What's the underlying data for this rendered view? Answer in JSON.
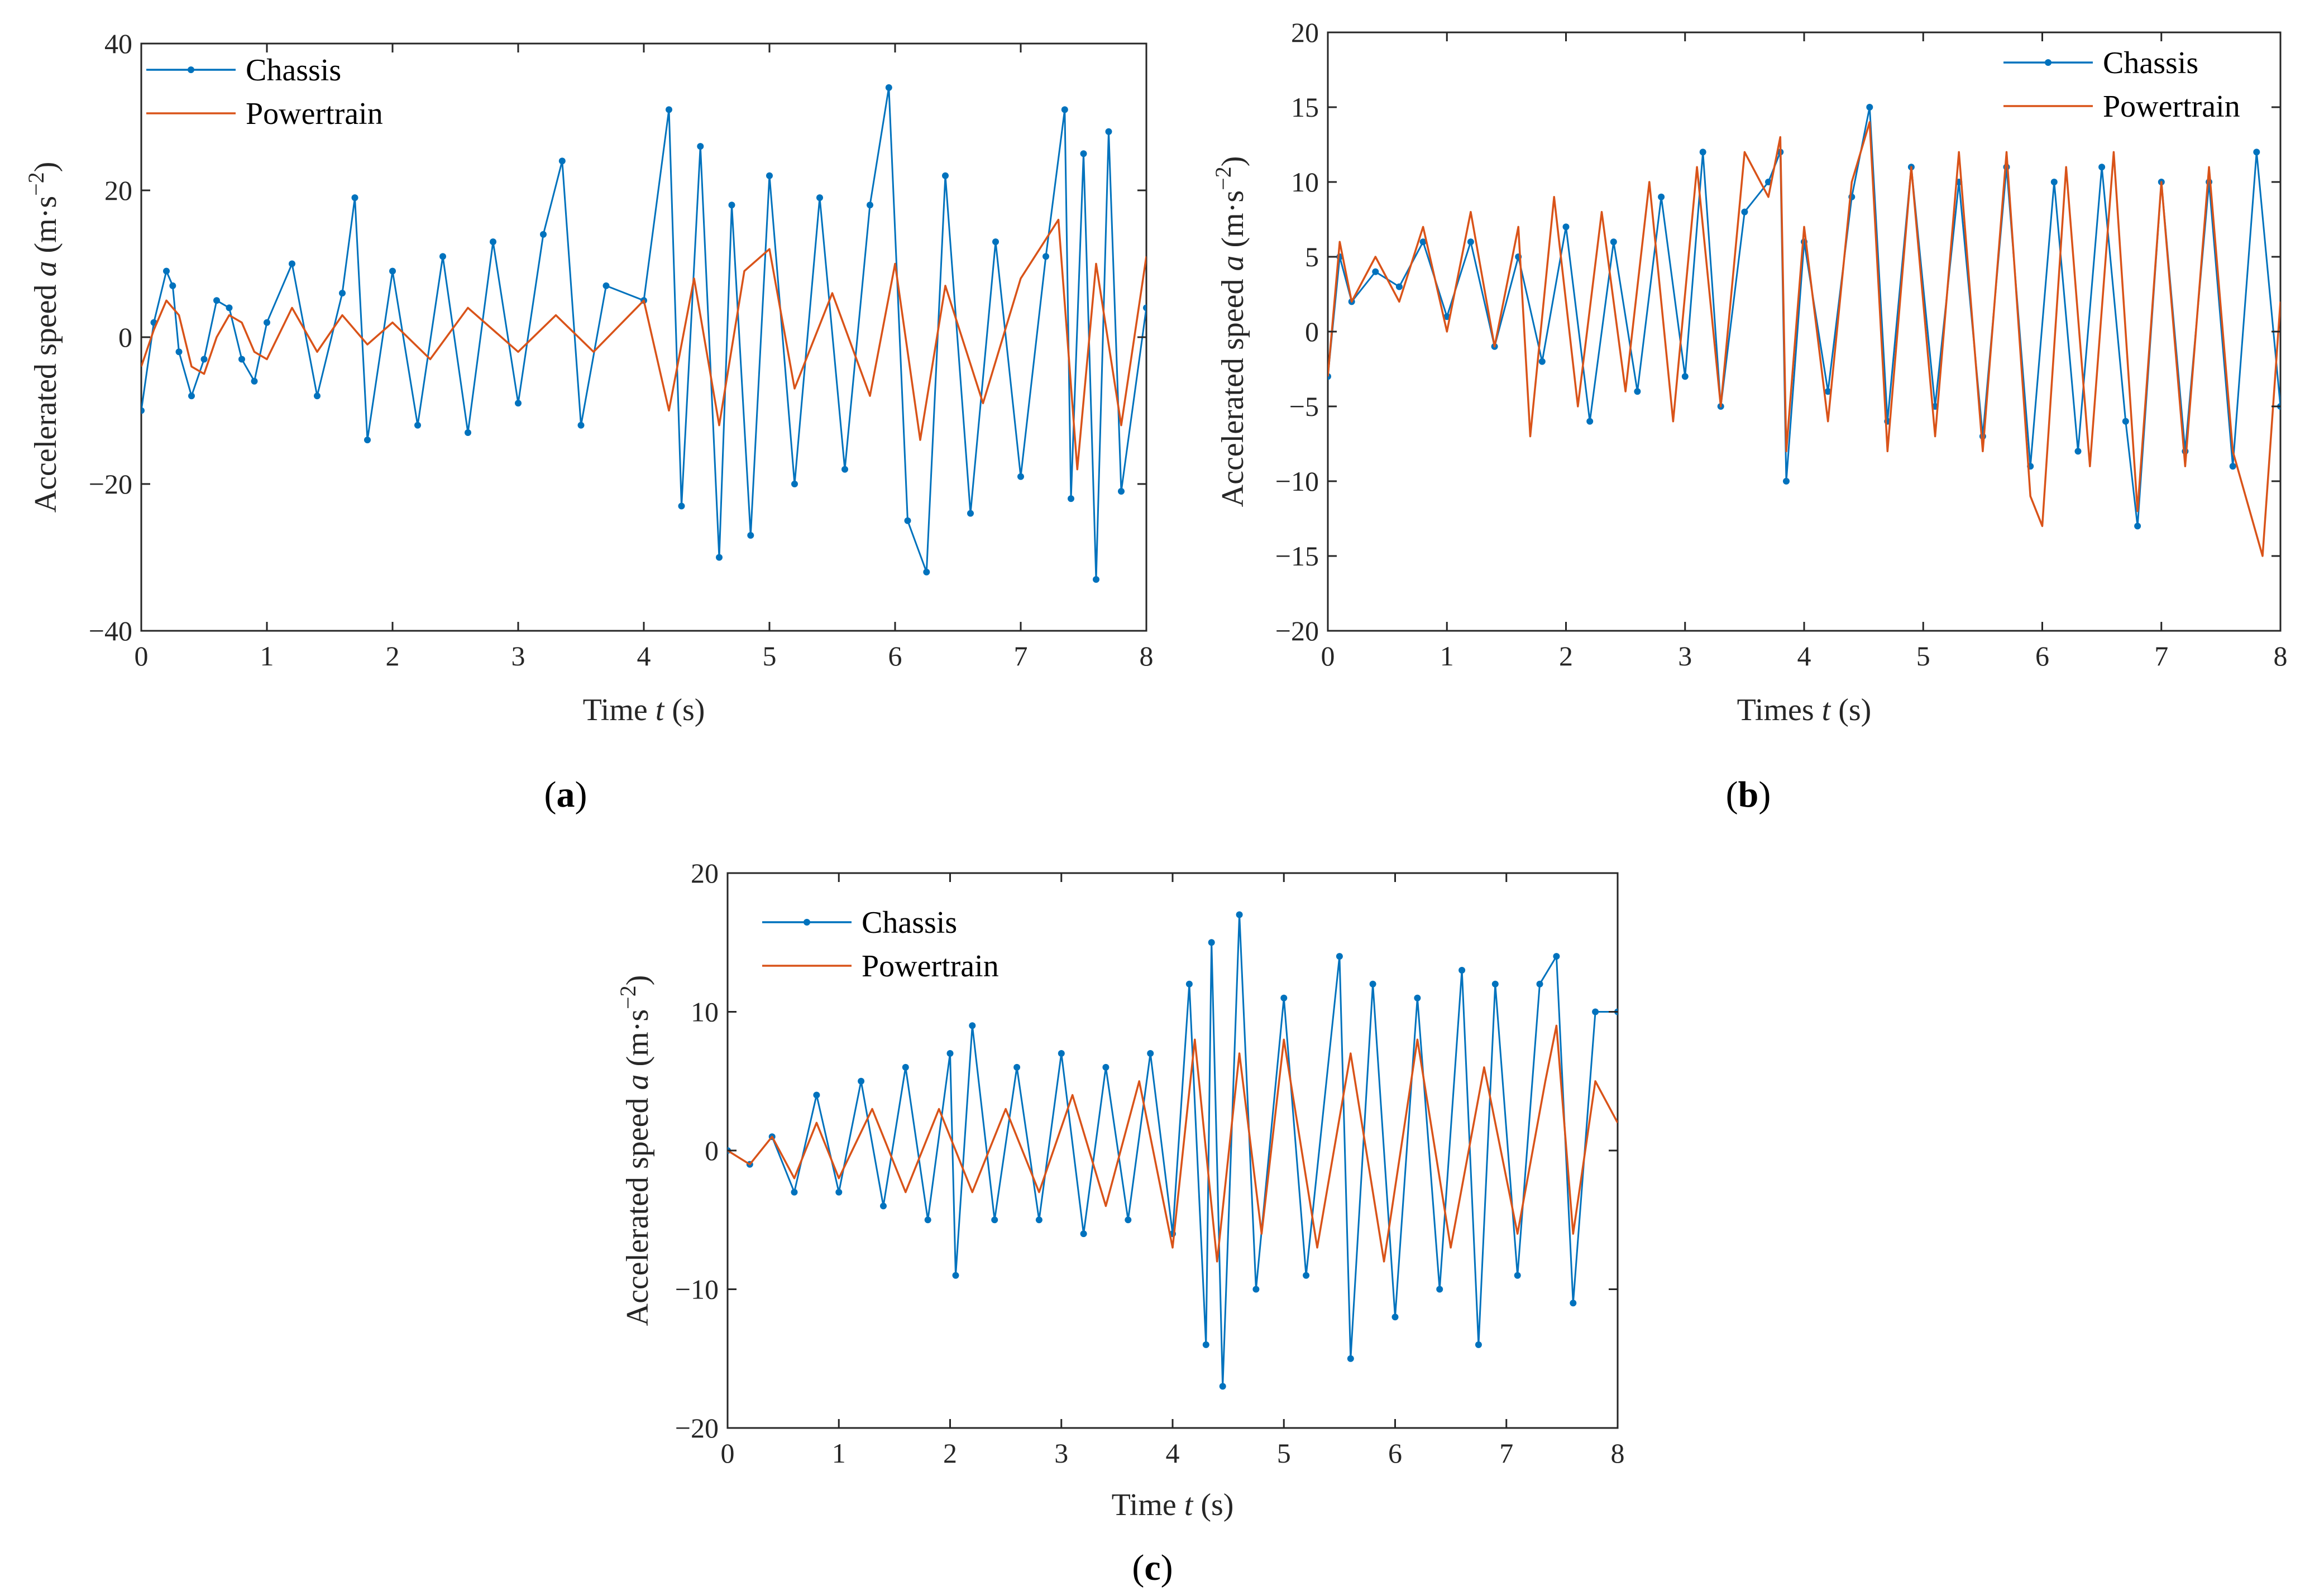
{
  "figure": {
    "panels": [
      "a",
      "b",
      "c"
    ]
  },
  "colors": {
    "chassis": "#0072BD",
    "powertrain": "#D95319",
    "axis": "#262626"
  },
  "chart_data": [
    {
      "id": "a",
      "type": "line",
      "panel_label": {
        "open": "(",
        "letter": "a",
        "close": ")"
      },
      "xlabel": {
        "pre": "Time ",
        "var": "t",
        "post": " (s)"
      },
      "ylabel": {
        "pre": "Accelerated speed ",
        "var": "a",
        "unit_open": " (m·s",
        "exp": "−2",
        "unit_close": ")"
      },
      "xlim": [
        0,
        8
      ],
      "ylim": [
        -40,
        40
      ],
      "xticks": [
        0,
        1,
        2,
        3,
        4,
        5,
        6,
        7,
        8
      ],
      "yticks": [
        -40,
        -20,
        0,
        20,
        40
      ],
      "ytick_labels": [
        "−40",
        "−20",
        "0",
        "20",
        "40"
      ],
      "legend": {
        "position": "top-left",
        "entries": [
          "Chassis",
          "Powertrain"
        ]
      },
      "series": [
        {
          "name": "Chassis",
          "marker": "dot",
          "style": "line-with-dots",
          "x": [
            0,
            0.1,
            0.2,
            0.25,
            0.3,
            0.4,
            0.5,
            0.6,
            0.7,
            0.8,
            0.9,
            1.0,
            1.2,
            1.4,
            1.6,
            1.7,
            1.8,
            2.0,
            2.2,
            2.4,
            2.6,
            2.8,
            3.0,
            3.2,
            3.35,
            3.5,
            3.7,
            4.0,
            4.2,
            4.3,
            4.45,
            4.6,
            4.7,
            4.85,
            5.0,
            5.2,
            5.4,
            5.6,
            5.8,
            5.95,
            6.1,
            6.25,
            6.4,
            6.6,
            6.8,
            7.0,
            7.2,
            7.35,
            7.4,
            7.5,
            7.6,
            7.7,
            7.8,
            8.0
          ],
          "y": [
            -10,
            2,
            9,
            7,
            -2,
            -8,
            -3,
            5,
            4,
            -3,
            -6,
            2,
            10,
            -8,
            6,
            19,
            -14,
            9,
            -12,
            11,
            -13,
            13,
            -9,
            14,
            24,
            -12,
            7,
            5,
            31,
            -23,
            26,
            -30,
            18,
            -27,
            22,
            -20,
            19,
            -18,
            18,
            34,
            -25,
            -32,
            22,
            -24,
            13,
            -19,
            11,
            31,
            -22,
            25,
            -33,
            28,
            -21,
            4
          ]
        },
        {
          "name": "Powertrain",
          "marker": "none",
          "style": "line",
          "x": [
            0,
            0.1,
            0.2,
            0.3,
            0.4,
            0.5,
            0.6,
            0.7,
            0.8,
            0.9,
            1.0,
            1.2,
            1.4,
            1.6,
            1.8,
            2.0,
            2.3,
            2.6,
            3.0,
            3.3,
            3.6,
            4.0,
            4.2,
            4.4,
            4.6,
            4.8,
            5.0,
            5.2,
            5.5,
            5.8,
            6.0,
            6.2,
            6.4,
            6.7,
            7.0,
            7.3,
            7.45,
            7.6,
            7.8,
            8.0
          ],
          "y": [
            -4,
            1,
            5,
            3,
            -4,
            -5,
            0,
            3,
            2,
            -2,
            -3,
            4,
            -2,
            3,
            -1,
            2,
            -3,
            4,
            -2,
            3,
            -2,
            5,
            -10,
            8,
            -12,
            9,
            12,
            -7,
            6,
            -8,
            10,
            -14,
            7,
            -9,
            8,
            16,
            -18,
            10,
            -12,
            11
          ]
        }
      ]
    },
    {
      "id": "b",
      "type": "line",
      "panel_label": {
        "open": "(",
        "letter": "b",
        "close": ")"
      },
      "xlabel": {
        "pre": "Times ",
        "var": "t",
        "post": " (s)"
      },
      "ylabel": {
        "pre": "Accelerated speed ",
        "var": "a",
        "unit_open": " (m·s",
        "exp": "−2",
        "unit_close": ")"
      },
      "xlim": [
        0,
        8
      ],
      "ylim": [
        -20,
        20
      ],
      "xticks": [
        0,
        1,
        2,
        3,
        4,
        5,
        6,
        7,
        8
      ],
      "yticks": [
        -20,
        -15,
        -10,
        -5,
        0,
        5,
        10,
        15,
        20
      ],
      "ytick_labels": [
        "−20",
        "−15",
        "−10",
        "−5",
        "0",
        "5",
        "10",
        "15",
        "20"
      ],
      "legend": {
        "position": "top-right",
        "entries": [
          "Chassis",
          "Powertrain"
        ]
      },
      "series": [
        {
          "name": "Chassis",
          "marker": "dot",
          "style": "line-with-dots",
          "x": [
            0,
            0.1,
            0.2,
            0.4,
            0.6,
            0.8,
            1.0,
            1.2,
            1.4,
            1.6,
            1.8,
            2.0,
            2.2,
            2.4,
            2.6,
            2.8,
            3.0,
            3.15,
            3.3,
            3.5,
            3.7,
            3.8,
            3.85,
            4.0,
            4.2,
            4.4,
            4.55,
            4.7,
            4.9,
            5.1,
            5.3,
            5.5,
            5.7,
            5.9,
            6.1,
            6.3,
            6.5,
            6.7,
            6.8,
            7.0,
            7.2,
            7.4,
            7.6,
            7.8,
            8.0
          ],
          "y": [
            -3,
            5,
            2,
            4,
            3,
            6,
            1,
            6,
            -1,
            5,
            -2,
            7,
            -6,
            6,
            -4,
            9,
            -3,
            12,
            -5,
            8,
            10,
            12,
            -10,
            6,
            -4,
            9,
            15,
            -6,
            11,
            -5,
            10,
            -7,
            11,
            -9,
            10,
            -8,
            11,
            -6,
            -13,
            10,
            -8,
            10,
            -9,
            12,
            -5
          ]
        },
        {
          "name": "Powertrain",
          "marker": "none",
          "style": "line",
          "x": [
            0,
            0.1,
            0.2,
            0.4,
            0.6,
            0.8,
            1.0,
            1.2,
            1.4,
            1.6,
            1.7,
            1.9,
            2.1,
            2.3,
            2.5,
            2.7,
            2.9,
            3.1,
            3.3,
            3.5,
            3.7,
            3.8,
            3.85,
            4.0,
            4.2,
            4.4,
            4.55,
            4.7,
            4.9,
            5.1,
            5.3,
            5.5,
            5.7,
            5.9,
            6.0,
            6.2,
            6.4,
            6.6,
            6.8,
            7.0,
            7.2,
            7.4,
            7.6,
            7.85,
            8.0
          ],
          "y": [
            -3,
            6,
            2,
            5,
            2,
            7,
            0,
            8,
            -1,
            7,
            -7,
            9,
            -5,
            8,
            -4,
            10,
            -6,
            11,
            -5,
            12,
            9,
            13,
            -8,
            7,
            -6,
            10,
            14,
            -8,
            11,
            -7,
            12,
            -8,
            12,
            -11,
            -13,
            11,
            -9,
            12,
            -12,
            10,
            -9,
            11,
            -8,
            -15,
            2
          ]
        }
      ]
    },
    {
      "id": "c",
      "type": "line",
      "panel_label": {
        "open": "(",
        "letter": "c",
        "close": ")"
      },
      "xlabel": {
        "pre": "Time ",
        "var": "t",
        "post": " (s)"
      },
      "ylabel": {
        "pre": "Accelerated speed ",
        "var": "a",
        "unit_open": " (m·s",
        "exp": "−2",
        "unit_close": ")"
      },
      "xlim": [
        0,
        8
      ],
      "ylim": [
        -20,
        20
      ],
      "xticks": [
        0,
        1,
        2,
        3,
        4,
        5,
        6,
        7,
        8
      ],
      "yticks": [
        -20,
        -10,
        0,
        10,
        20
      ],
      "ytick_labels": [
        "−20",
        "−10",
        "0",
        "10",
        "20"
      ],
      "legend": {
        "position": "top-left",
        "entries": [
          "Chassis",
          "Powertrain"
        ]
      },
      "series": [
        {
          "name": "Chassis",
          "marker": "dot",
          "style": "line-with-dots",
          "x": [
            0,
            0.2,
            0.4,
            0.6,
            0.8,
            1.0,
            1.2,
            1.4,
            1.6,
            1.8,
            2.0,
            2.05,
            2.2,
            2.4,
            2.6,
            2.8,
            3.0,
            3.2,
            3.4,
            3.6,
            3.8,
            4.0,
            4.15,
            4.3,
            4.35,
            4.45,
            4.6,
            4.75,
            5.0,
            5.2,
            5.5,
            5.6,
            5.8,
            6.0,
            6.2,
            6.4,
            6.6,
            6.75,
            6.9,
            7.1,
            7.3,
            7.45,
            7.6,
            7.8,
            8.0
          ],
          "y": [
            0,
            -1,
            1,
            -3,
            4,
            -3,
            5,
            -4,
            6,
            -5,
            7,
            -9,
            9,
            -5,
            6,
            -5,
            7,
            -6,
            6,
            -5,
            7,
            -6,
            12,
            -14,
            15,
            -17,
            17,
            -10,
            11,
            -9,
            14,
            -15,
            12,
            -12,
            11,
            -10,
            13,
            -14,
            12,
            -9,
            12,
            14,
            -11,
            10,
            10
          ]
        },
        {
          "name": "Powertrain",
          "marker": "none",
          "style": "line",
          "x": [
            0,
            0.2,
            0.4,
            0.6,
            0.8,
            1.0,
            1.3,
            1.6,
            1.9,
            2.2,
            2.5,
            2.8,
            3.1,
            3.4,
            3.7,
            4.0,
            4.2,
            4.4,
            4.6,
            4.8,
            5.0,
            5.3,
            5.6,
            5.9,
            6.2,
            6.5,
            6.8,
            7.1,
            7.35,
            7.45,
            7.6,
            7.8,
            8.0
          ],
          "y": [
            0,
            -1,
            1,
            -2,
            2,
            -2,
            3,
            -3,
            3,
            -3,
            3,
            -3,
            4,
            -4,
            5,
            -7,
            8,
            -8,
            7,
            -6,
            8,
            -7,
            7,
            -8,
            8,
            -7,
            6,
            -6,
            5,
            9,
            -6,
            5,
            2
          ]
        }
      ]
    }
  ]
}
